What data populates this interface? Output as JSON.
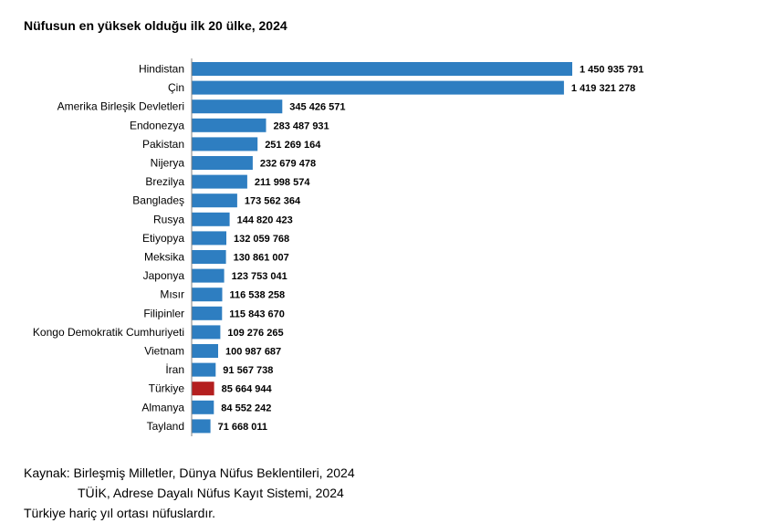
{
  "title": "Nüfusun en yüksek olduğu ilk 20 ülke, 2024",
  "chart_data": {
    "type": "bar",
    "orientation": "horizontal",
    "title": "Nüfusun en yüksek olduğu ilk 20 ülke, 2024",
    "categories": [
      "Hindistan",
      "Çin",
      "Amerika Birleşik Devletleri",
      "Endonezya",
      "Pakistan",
      "Nijerya",
      "Brezilya",
      "Bangladeş",
      "Rusya",
      "Etiyopya",
      "Meksika",
      "Japonya",
      "Mısır",
      "Filipinler",
      "Kongo Demokratik Cumhuriyeti",
      "Vietnam",
      "İran",
      "Türkiye",
      "Almanya",
      "Tayland"
    ],
    "values": [
      1450935791,
      1419321278,
      345426571,
      283487931,
      251269164,
      232679478,
      211998574,
      173562364,
      144820423,
      132059768,
      130861007,
      123753041,
      116538258,
      115843670,
      109276265,
      100987687,
      91567738,
      85664944,
      84552242,
      71668011
    ],
    "value_labels": [
      "1 450 935 791",
      "1 419 321 278",
      "345 426 571",
      "283 487 931",
      "251 269 164",
      "232 679 478",
      "211 998 574",
      "173 562 364",
      "144 820 423",
      "132 059 768",
      "130 861 007",
      "123 753 041",
      "116 538 258",
      "115 843 670",
      "109 276 265",
      "100 987 687",
      "91 567 738",
      "85 664 944",
      "84 552 242",
      "71 668 011"
    ],
    "xlim": [
      0,
      1450935791
    ],
    "bar_color": "#2E7EC1",
    "highlight_color": "#B41F1F",
    "highlight_category": "Türkiye",
    "grid": false,
    "legend": "none"
  },
  "source": {
    "line1": "Kaynak: Birleşmiş Milletler, Dünya Nüfus Beklentileri, 2024",
    "line2": "TÜİK, Adrese Dayalı Nüfus Kayıt Sistemi, 2024"
  },
  "footnote": "Türkiye hariç yıl ortası nüfuslardır."
}
